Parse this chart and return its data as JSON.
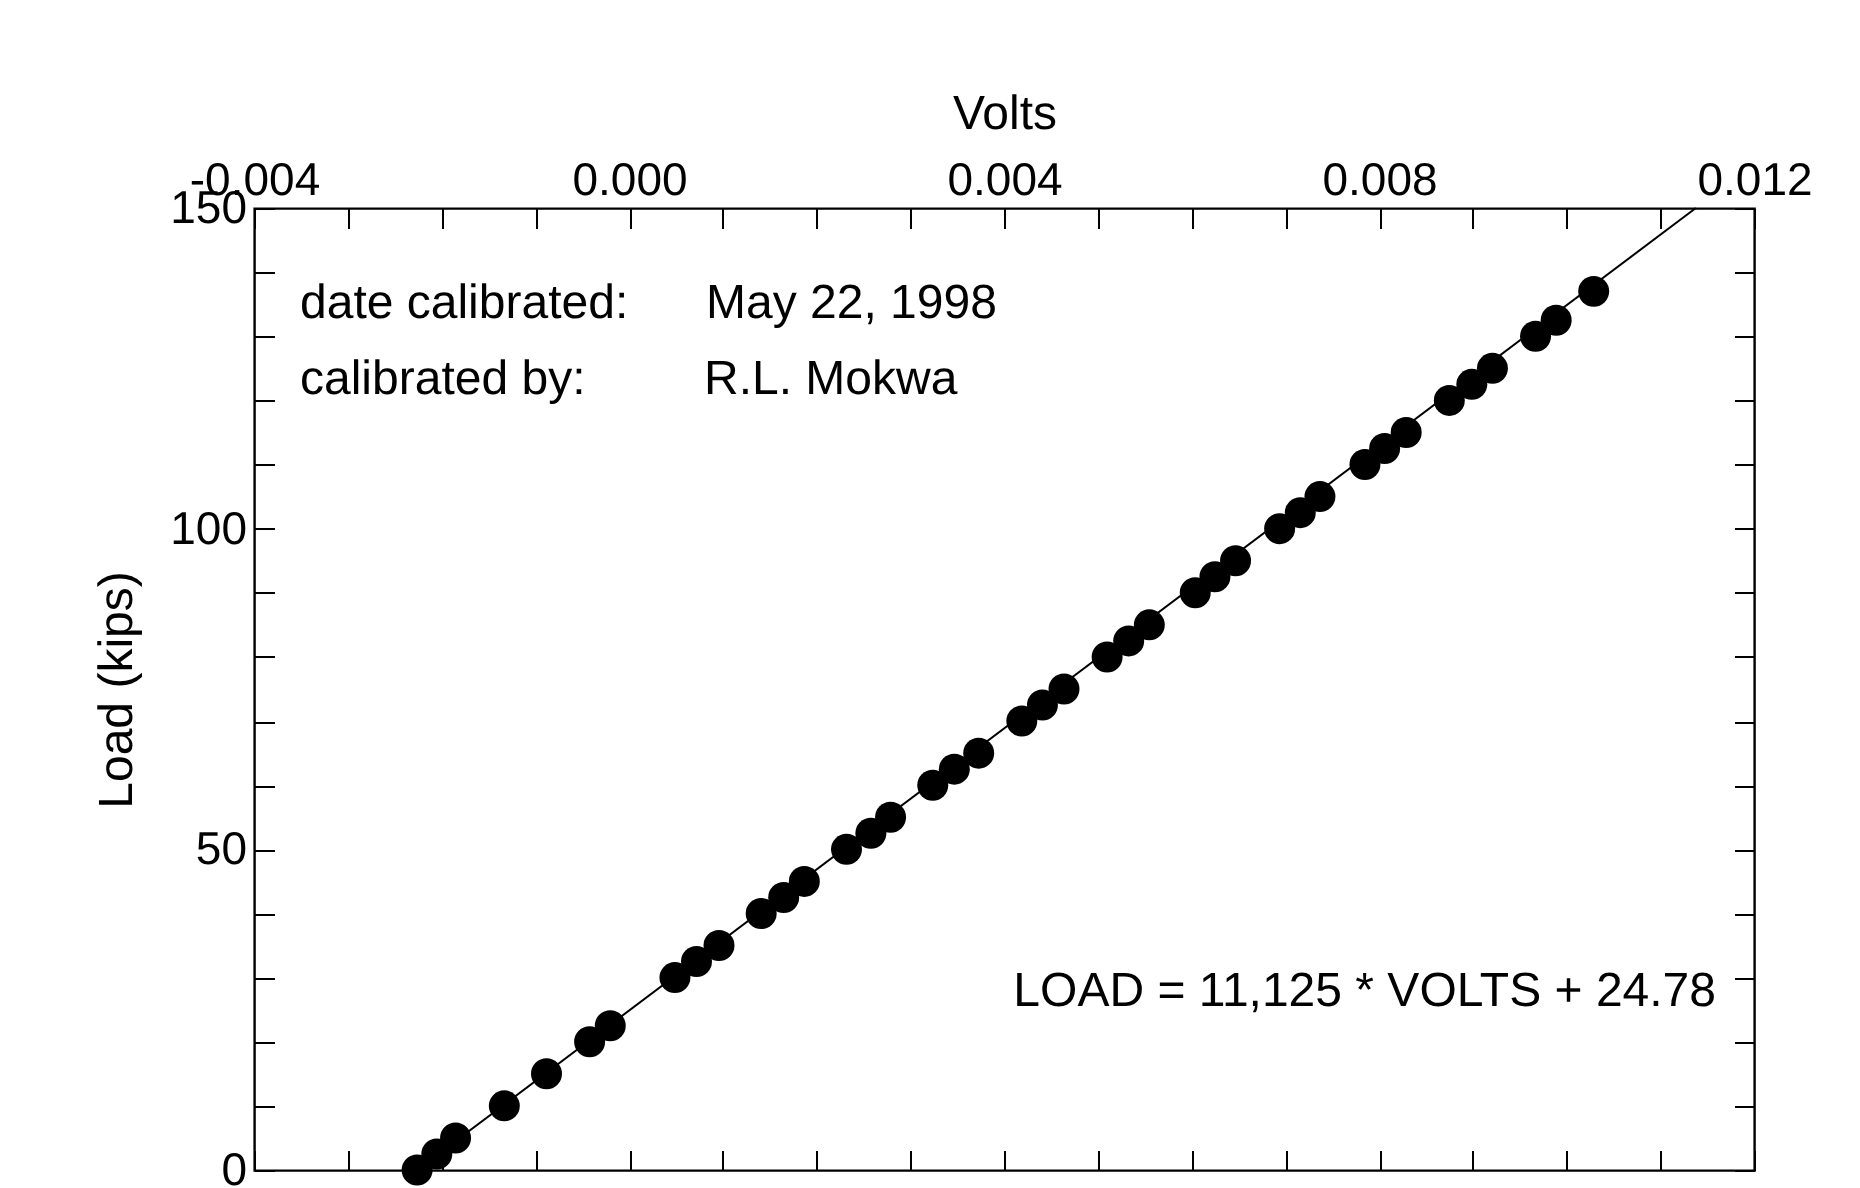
{
  "chart_data": {
    "type": "scatter",
    "xlabel": "Volts",
    "ylabel": "Load (kips)",
    "xlim": [
      -0.004,
      0.012
    ],
    "ylim": [
      0,
      150
    ],
    "xticks": [
      {
        "value": -0.004,
        "label": "-0.004"
      },
      {
        "value": -0.003,
        "label": null
      },
      {
        "value": -0.002,
        "label": null
      },
      {
        "value": -0.001,
        "label": null
      },
      {
        "value": 0,
        "label": "0.000"
      },
      {
        "value": 0.001,
        "label": null
      },
      {
        "value": 0.002,
        "label": null
      },
      {
        "value": 0.003,
        "label": null
      },
      {
        "value": 0.004,
        "label": "0.004"
      },
      {
        "value": 0.005,
        "label": null
      },
      {
        "value": 0.006,
        "label": null
      },
      {
        "value": 0.007,
        "label": null
      },
      {
        "value": 0.008,
        "label": "0.008"
      },
      {
        "value": 0.009,
        "label": null
      },
      {
        "value": 0.01,
        "label": null
      },
      {
        "value": 0.011,
        "label": null
      },
      {
        "value": 0.012,
        "label": "0.012"
      }
    ],
    "yticks": [
      0,
      {
        "value": 10,
        "label": null
      },
      {
        "value": 20,
        "label": null
      },
      {
        "value": 30,
        "label": null
      },
      {
        "value": 40,
        "label": null
      },
      50,
      {
        "value": 60,
        "label": null
      },
      {
        "value": 70,
        "label": null
      },
      {
        "value": 80,
        "label": null
      },
      {
        "value": 90,
        "label": null
      },
      100,
      {
        "value": 110,
        "label": null
      },
      {
        "value": 120,
        "label": null
      },
      {
        "value": 130,
        "label": null
      },
      {
        "value": 140,
        "label": null
      },
      150
    ],
    "series": [
      {
        "marker": "circle",
        "color": "#000000",
        "x": [
          -0.00226,
          -0.00205,
          -0.00185,
          -0.00133,
          -0.00088,
          -0.00042,
          -0.0002,
          0.00049,
          0.00072,
          0.00096,
          0.00141,
          0.00165,
          0.00187,
          0.00232,
          0.00258,
          0.00279,
          0.00324,
          0.00347,
          0.00373,
          0.00419,
          0.00441,
          0.00464,
          0.0051,
          0.00533,
          0.00555,
          0.00604,
          0.00625,
          0.00647,
          0.00694,
          0.00716,
          0.00737,
          0.00785,
          0.00806,
          0.00829,
          0.00875,
          0.00899,
          0.00921,
          0.00967,
          0.00989,
          0.01029
        ],
        "values": [
          0,
          2.5,
          5,
          10,
          15,
          20,
          22.5,
          30,
          32.5,
          35,
          40,
          42.5,
          45,
          50,
          52.5,
          55,
          60,
          62.5,
          65,
          70,
          72.5,
          75,
          80,
          82.5,
          85,
          90,
          92.5,
          95,
          100,
          102.5,
          105,
          110,
          112.5,
          115,
          120,
          122.5,
          125,
          130,
          132.5,
          137
        ]
      },
      {
        "type": "line",
        "marker": "none",
        "color": "#000000",
        "x": [
          -0.00226,
          0.01138
        ],
        "values": [
          0,
          150
        ]
      }
    ],
    "annotations": [
      "date calibrated:",
      "May 22, 1998",
      "calibrated by:",
      "R.L. Mokwa",
      "LOAD = 11,125 * VOLTS + 24.78"
    ]
  }
}
